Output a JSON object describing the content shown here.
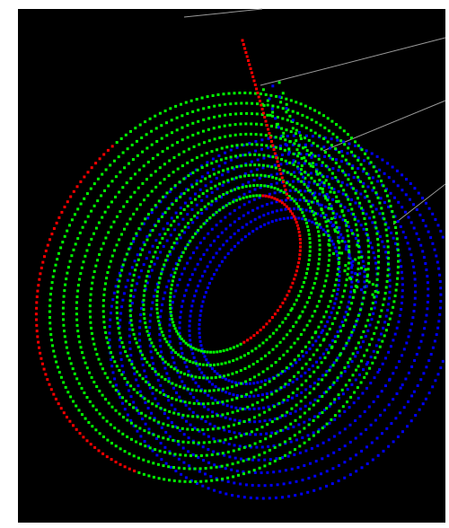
{
  "scene": {
    "background": "#000000",
    "colors": [
      "#ff0000",
      "#00ff00",
      "#0000ff"
    ]
  }
}
